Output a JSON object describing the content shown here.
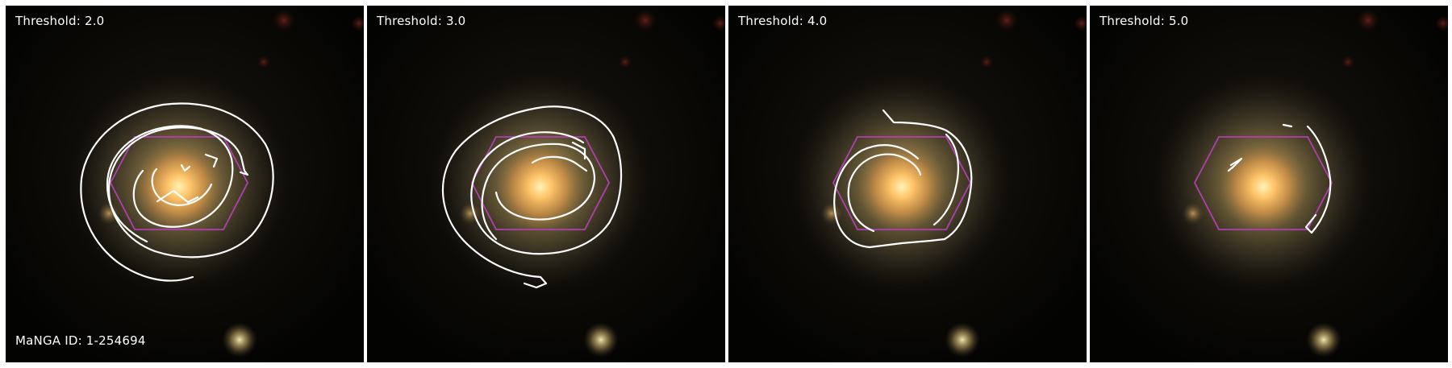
{
  "panels": [
    {
      "title": "Threshold: 2.0",
      "note": "MaNGA ID: 1-254694"
    },
    {
      "title": "Threshold: 3.0"
    },
    {
      "title": "Threshold: 4.0"
    },
    {
      "title": "Threshold: 5.0"
    }
  ],
  "colors": {
    "background": "#ffffff",
    "sky": "#000000",
    "galaxy_core": "#ffc66a",
    "galaxy_halo": "#a08848",
    "contour": "#ffffff",
    "hexagon": "#b040b0",
    "label_text": "#ffffff"
  }
}
